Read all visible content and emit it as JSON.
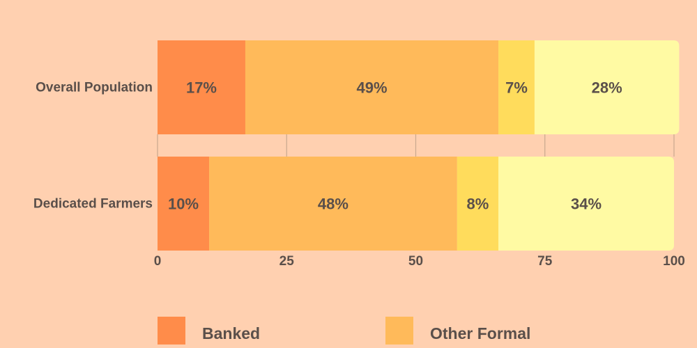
{
  "colors": {
    "background": "#FFD0B0",
    "gridline": "#C8A88E",
    "label_text": "#5A4F4A",
    "series": [
      "#FF8C4A",
      "#FFBA5A",
      "#FFDC5C",
      "#FFFAA3"
    ]
  },
  "chart_data": {
    "type": "bar",
    "orientation": "horizontal",
    "stacked": true,
    "title": "",
    "xlabel": "",
    "ylabel": "",
    "xlim": [
      0,
      100
    ],
    "x_ticks": [
      0,
      25,
      50,
      75,
      100
    ],
    "grid": "vertical",
    "legend_position": "bottom",
    "categories": [
      "Overall Population",
      "Dedicated Farmers"
    ],
    "series": [
      {
        "name": "Banked",
        "values": [
          17,
          10
        ],
        "labels": [
          "17%",
          "10%"
        ]
      },
      {
        "name": "Other Formal",
        "values": [
          49,
          48
        ],
        "labels": [
          "49%",
          "48%"
        ]
      },
      {
        "values": [
          7,
          8
        ],
        "labels": [
          "7%",
          "8%"
        ]
      },
      {
        "values": [
          28,
          34
        ],
        "labels": [
          "28%",
          "34%"
        ]
      }
    ]
  }
}
